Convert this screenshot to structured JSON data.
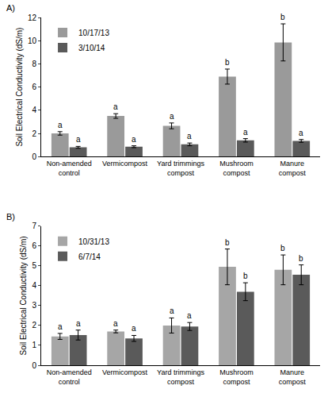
{
  "chart_data": [
    {
      "type": "bar",
      "title": "A)",
      "y_label": "Soil Electrical Conductivity (dS/m)",
      "categories": [
        "Non-amended control",
        "Vermicompost",
        "Yard trimmings compost",
        "Mushroom compost",
        "Manure compost"
      ],
      "series": [
        {
          "name": "10/17/13",
          "color": "#9a9a9a",
          "values": [
            2.0,
            3.5,
            2.65,
            6.9,
            9.85
          ],
          "error": [
            0.15,
            0.2,
            0.25,
            0.65,
            1.6
          ],
          "annotations": [
            "a",
            "a",
            "a",
            "b",
            "b"
          ]
        },
        {
          "name": "3/10/14",
          "color": "#5a5a5a",
          "values": [
            0.8,
            0.85,
            1.05,
            1.4,
            1.35
          ],
          "error": [
            0.08,
            0.08,
            0.12,
            0.15,
            0.12
          ],
          "annotations": [
            "a",
            "a",
            "a",
            "a",
            "a"
          ]
        }
      ],
      "ylim": [
        0,
        12
      ],
      "yticks": [
        0,
        2,
        4,
        6,
        8,
        10,
        12
      ],
      "grid": false,
      "legend": "upper left"
    },
    {
      "type": "bar",
      "title": "B)",
      "y_label": "Soil Electrical Conductivity (dS/m)",
      "categories": [
        "Non-amended control",
        "Vermicompost",
        "Yard trimmings compost",
        "Mushroom compost",
        "Manure compost"
      ],
      "series": [
        {
          "name": "10/31/13",
          "color": "#a6a6a6",
          "values": [
            1.45,
            1.7,
            2.0,
            4.95,
            4.8
          ],
          "error": [
            0.15,
            0.07,
            0.38,
            0.9,
            0.75
          ],
          "annotations": [
            "a",
            "a",
            "a",
            "b",
            "b"
          ]
        },
        {
          "name": "6/7/14",
          "color": "#5a5a5a",
          "values": [
            1.52,
            1.35,
            1.95,
            3.7,
            4.55
          ],
          "error": [
            0.25,
            0.15,
            0.2,
            0.45,
            0.5
          ],
          "annotations": [
            "a",
            "a",
            "a",
            "b",
            "b"
          ]
        }
      ],
      "ylim": [
        0,
        7
      ],
      "yticks": [
        0,
        1,
        2,
        3,
        4,
        5,
        6,
        7
      ],
      "grid": false,
      "legend": "upper left"
    }
  ]
}
